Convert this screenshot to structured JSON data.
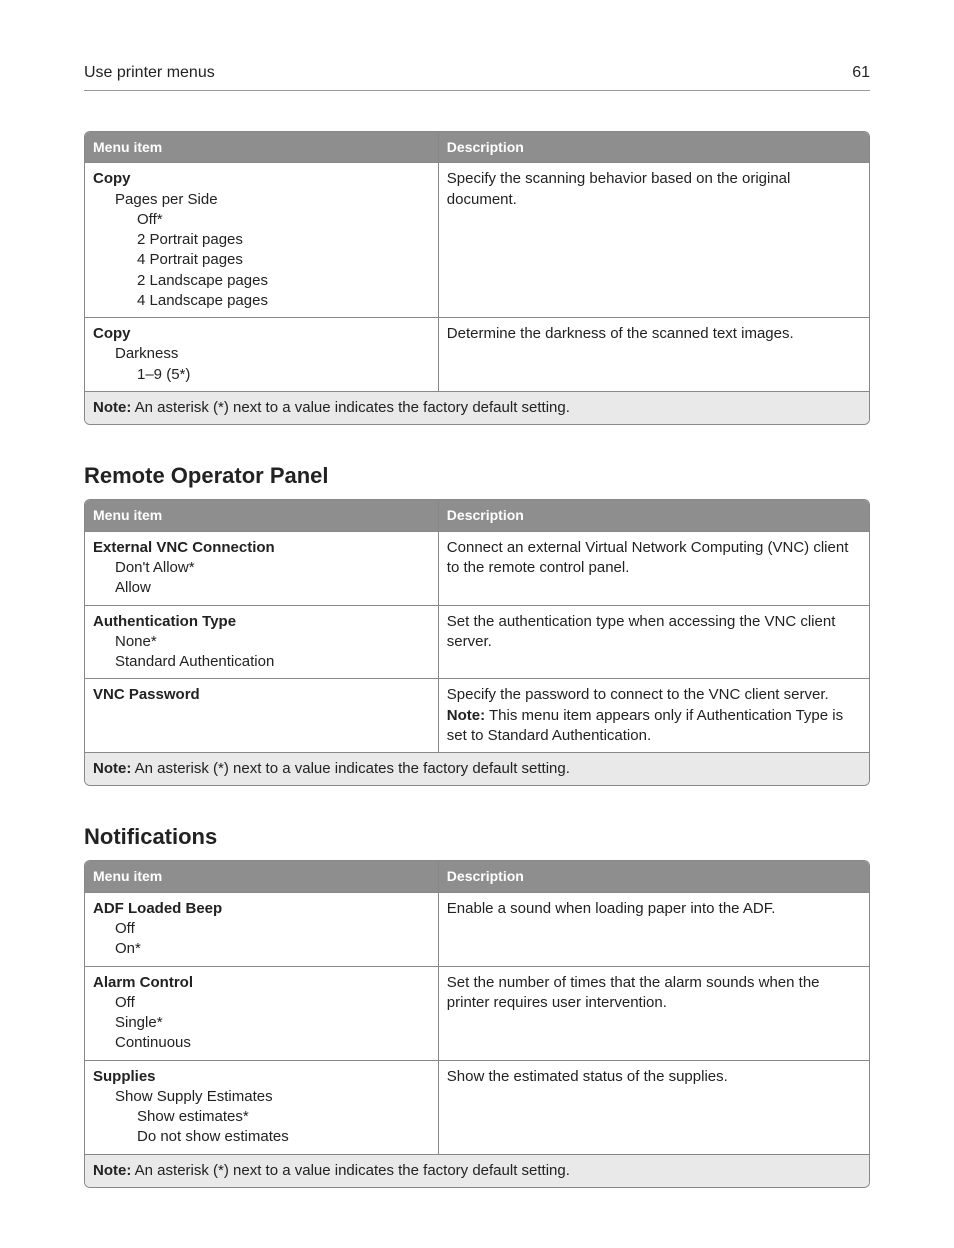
{
  "header": {
    "title": "Use printer menus",
    "page_number": "61"
  },
  "tables": {
    "copy": {
      "columns": [
        "Menu item",
        "Description"
      ],
      "rows": [
        {
          "title": "Copy",
          "lvl1": [
            "Pages per Side"
          ],
          "lvl2": [
            "Off*",
            "2 Portrait pages",
            "4 Portrait pages",
            "2 Landscape pages",
            "4 Landscape pages"
          ],
          "desc": "Specify the scanning behavior based on the original document."
        },
        {
          "title": "Copy",
          "lvl1": [
            "Darkness"
          ],
          "lvl2": [
            "1–9 (5*)"
          ],
          "desc": "Determine the darkness of the scanned text images."
        }
      ],
      "note_label": "Note:",
      "note_text": " An asterisk (*) next to a value indicates the factory default setting."
    },
    "remote": {
      "heading": "Remote Operator Panel",
      "columns": [
        "Menu item",
        "Description"
      ],
      "rows": [
        {
          "title": "External VNC Connection",
          "lvl1": [
            "Don't Allow*",
            "Allow"
          ],
          "lvl2": [],
          "desc": "Connect an external Virtual Network Computing (VNC) client to the remote control panel."
        },
        {
          "title": "Authentication Type",
          "lvl1": [
            "None*",
            "Standard Authentication"
          ],
          "lvl2": [],
          "desc": "Set the authentication type when accessing the VNC client server."
        },
        {
          "title": "VNC Password",
          "lvl1": [],
          "lvl2": [],
          "desc": "Specify the password to connect to the VNC client server.",
          "desc_note_label": "Note:",
          "desc_note_text": " This menu item appears only if Authentication Type is set to Standard Authentication."
        }
      ],
      "note_label": "Note:",
      "note_text": " An asterisk (*) next to a value indicates the factory default setting."
    },
    "notifications": {
      "heading": "Notifications",
      "columns": [
        "Menu item",
        "Description"
      ],
      "rows": [
        {
          "title": "ADF Loaded Beep",
          "lvl1": [
            "Off",
            "On*"
          ],
          "lvl2": [],
          "desc": "Enable a sound when loading paper into the ADF."
        },
        {
          "title": "Alarm Control",
          "lvl1": [
            "Off",
            "Single*",
            "Continuous"
          ],
          "lvl2": [],
          "desc": "Set the number of times that the alarm sounds when the printer requires user intervention."
        },
        {
          "title": "Supplies",
          "lvl1": [
            "Show Supply Estimates"
          ],
          "lvl2": [
            "Show estimates*",
            "Do not show estimates"
          ],
          "desc": "Show the estimated status of the supplies."
        }
      ],
      "note_label": "Note:",
      "note_text": " An asterisk (*) next to a value indicates the factory default setting."
    }
  }
}
